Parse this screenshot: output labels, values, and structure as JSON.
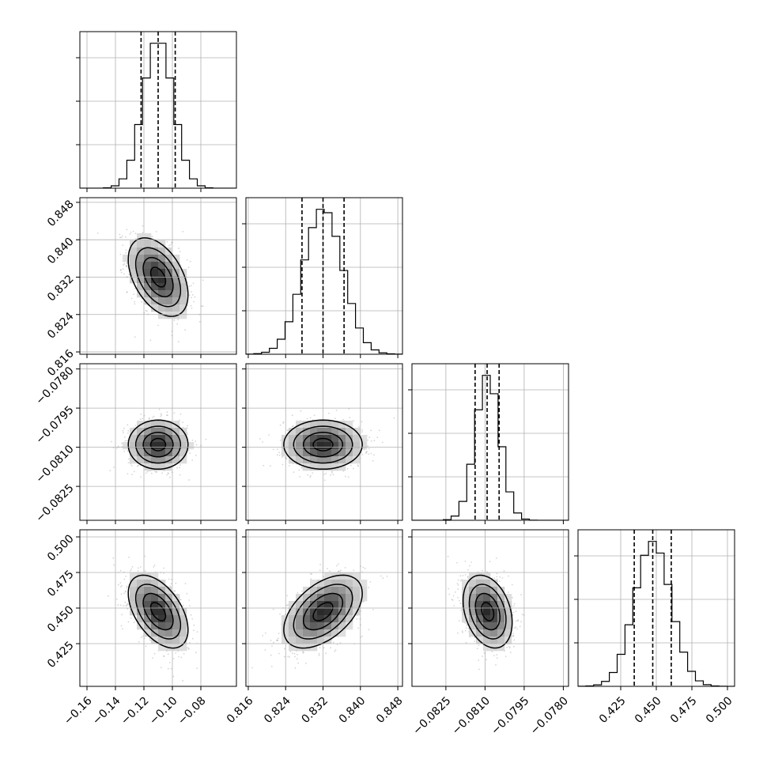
{
  "chart_data": {
    "type": "corner",
    "panel_types": {
      "diagonal": "histogram",
      "lower": "2d-density-contour-with-scatter"
    },
    "grid": true,
    "colors": {
      "line": "#000000",
      "points": "#888888",
      "density_dark": "#000000",
      "background": "#ffffff",
      "grid": "#b0b0b0"
    },
    "parameters": [
      {
        "range": [
          -0.165,
          -0.055
        ],
        "ticks": [
          -0.16,
          -0.14,
          -0.12,
          -0.1,
          -0.08
        ],
        "tick_labels": [
          "−0.16",
          "−0.14",
          "−0.12",
          "−0.10",
          "−0.08"
        ],
        "quantiles": [
          -0.122,
          -0.11,
          -0.098
        ],
        "mean": -0.11,
        "sigma": 0.0105,
        "hist_bins": 20
      },
      {
        "range": [
          0.8155,
          0.849
        ],
        "ticks": [
          0.816,
          0.824,
          0.832,
          0.84,
          0.848
        ],
        "tick_labels": [
          "0.816",
          "0.824",
          "0.832",
          "0.840",
          "0.848"
        ],
        "quantiles": [
          0.8275,
          0.832,
          0.8365
        ],
        "mean": 0.832,
        "sigma": 0.0042,
        "hist_bins": 20
      },
      {
        "range": [
          -0.0838,
          -0.0778
        ],
        "ticks": [
          -0.0825,
          -0.081,
          -0.0795,
          -0.078
        ],
        "tick_labels": [
          "−0.0825",
          "−0.0810",
          "−0.0795",
          "−0.0780"
        ],
        "quantiles": [
          -0.08138,
          -0.08092,
          -0.08046
        ],
        "mean": -0.0809,
        "sigma": 0.00047,
        "hist_bins": 20
      },
      {
        "range": [
          0.395,
          0.505
        ],
        "ticks": [
          0.425,
          0.45,
          0.475,
          0.5
        ],
        "tick_labels": [
          "0.425",
          "0.450",
          "0.475",
          "0.500"
        ],
        "quantiles": [
          0.4345,
          0.4475,
          0.4605
        ],
        "mean": 0.4475,
        "sigma": 0.0128,
        "hist_bins": 20
      }
    ],
    "correlations": [
      [
        1.0,
        -0.45,
        0.0,
        -0.5
      ],
      [
        -0.45,
        1.0,
        0.0,
        0.5
      ],
      [
        0.0,
        0.0,
        1.0,
        -0.3
      ],
      [
        -0.5,
        0.5,
        -0.3,
        1.0
      ]
    ],
    "contour_levels_sigma": [
      0.5,
      1.0,
      1.5,
      2.0
    ]
  }
}
